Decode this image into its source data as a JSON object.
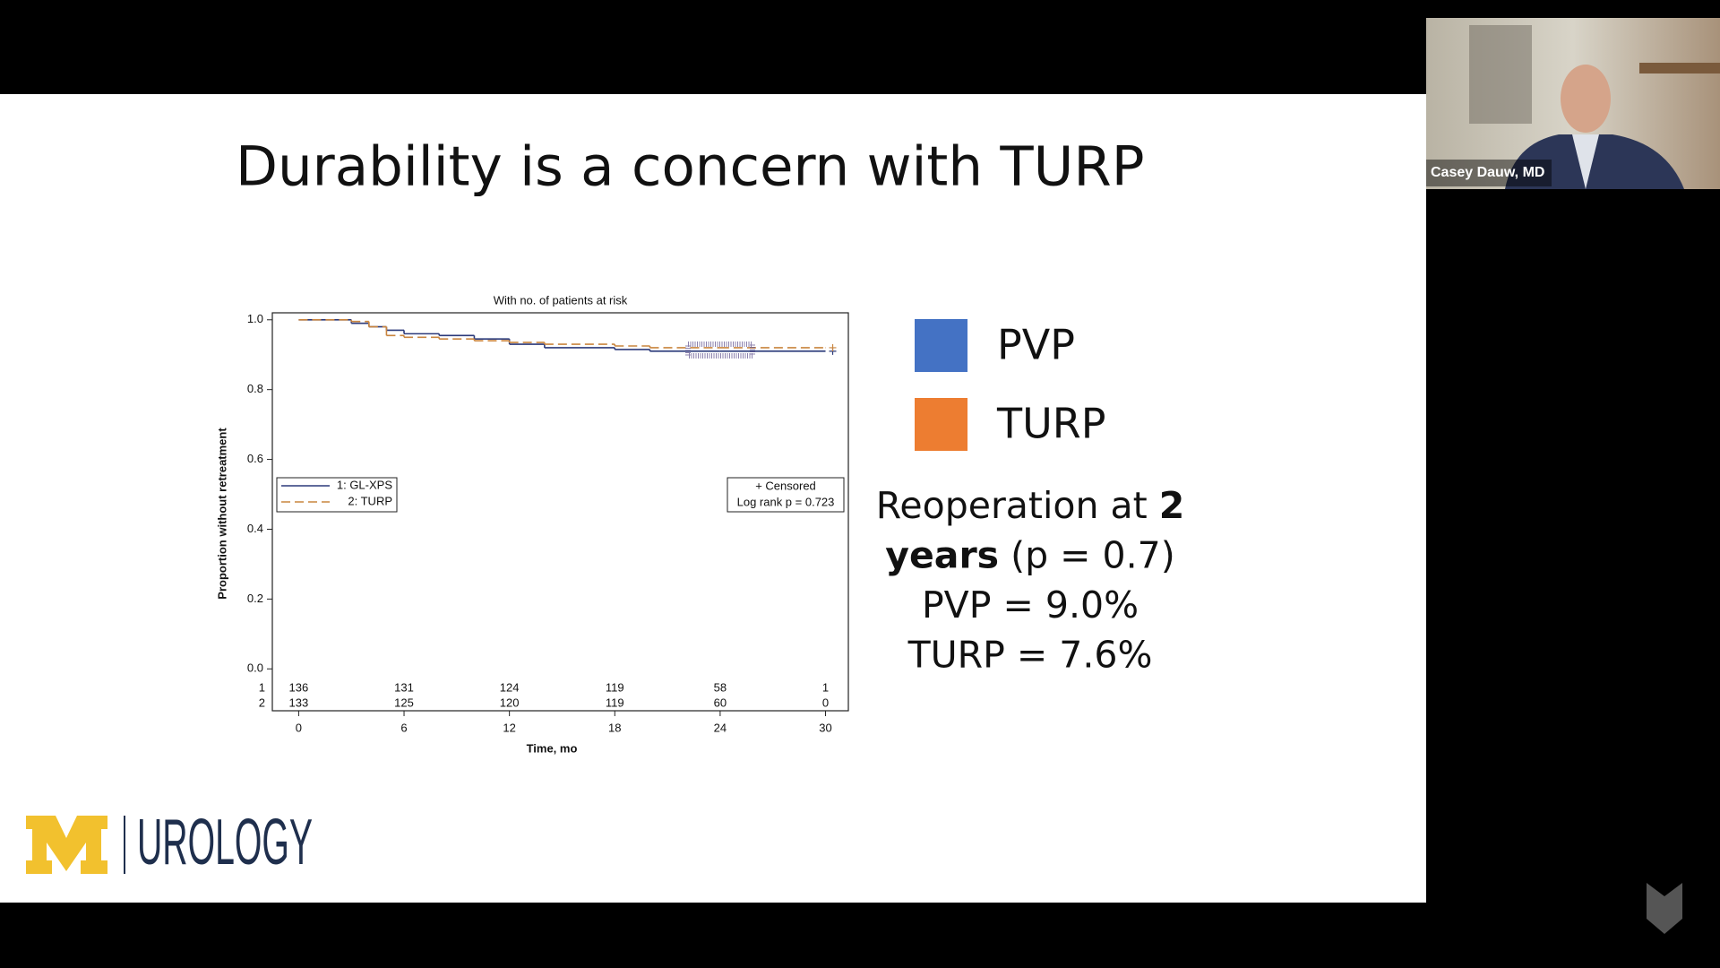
{
  "slide": {
    "title": "Durability is a concern with TURP",
    "legend": [
      {
        "name": "PVP",
        "color": "#4472c4"
      },
      {
        "name": "TURP",
        "color": "#ed7d31"
      }
    ],
    "summary": [
      [
        {
          "text": "Reoperation at "
        },
        {
          "text": "2",
          "bold": true
        }
      ],
      [
        {
          "text": "years",
          "bold": true
        },
        {
          "text": " (p = 0.7)"
        }
      ],
      [
        {
          "text": "PVP = 9.0%"
        }
      ],
      [
        {
          "text": "TURP = 7.6%"
        }
      ]
    ],
    "logo": "UROLOGY"
  },
  "webcam": {
    "name": "Casey Dauw, MD"
  },
  "chart_data": {
    "type": "step",
    "title": "With no. of patients at risk",
    "xlabel": "Time, mo",
    "ylabel": "Proportion without retreatment",
    "x": [
      0,
      3,
      4,
      5,
      6,
      8,
      10,
      12,
      14,
      18,
      20,
      24,
      30
    ],
    "series": [
      {
        "name": "1: GL-XPS",
        "color": "#2b3a7a",
        "dash": false,
        "values": [
          1.0,
          0.99,
          0.98,
          0.97,
          0.96,
          0.955,
          0.945,
          0.93,
          0.92,
          0.915,
          0.91,
          0.91,
          0.91
        ]
      },
      {
        "name": "2: TURP",
        "color": "#c9853f",
        "dash": true,
        "values": [
          1.0,
          0.995,
          0.98,
          0.955,
          0.95,
          0.945,
          0.94,
          0.935,
          0.93,
          0.925,
          0.92,
          0.92,
          0.92
        ]
      }
    ],
    "xlim": [
      -1.5,
      31.3
    ],
    "ylim": [
      -0.12,
      1.02
    ],
    "xticks": [
      0,
      6,
      12,
      18,
      24,
      30
    ],
    "yticks": [
      {
        "value": 0,
        "label": "0.0"
      },
      0.2,
      0.4,
      0.6,
      0.8,
      {
        "value": 1,
        "label": "1.0"
      }
    ],
    "at_risk": [
      {
        "label": "1",
        "values": [
          136,
          131,
          124,
          119,
          58,
          1
        ]
      },
      {
        "label": "2",
        "values": [
          133,
          125,
          120,
          119,
          60,
          0
        ]
      }
    ],
    "censored_label": "+ Censored",
    "log_rank": "Log rank p = 0.723"
  }
}
